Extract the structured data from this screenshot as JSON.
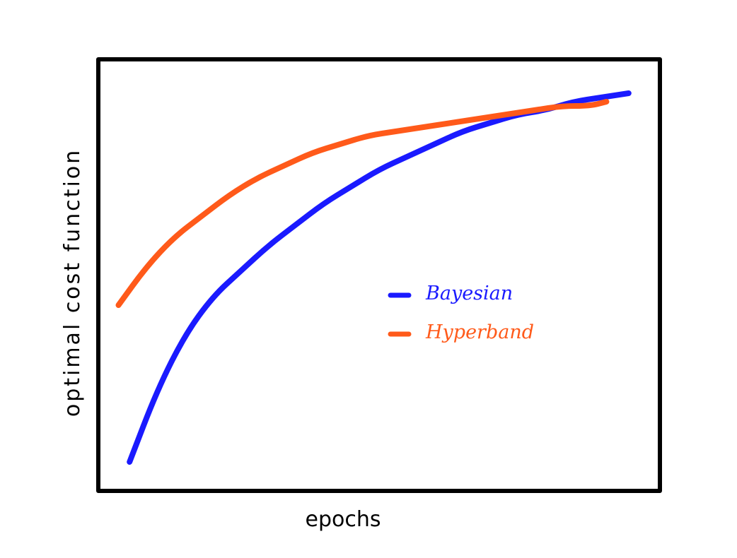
{
  "chart_data": {
    "type": "line",
    "title": "",
    "xlabel": "epochs",
    "ylabel": "optimal cost function",
    "xlim": [
      0,
      100
    ],
    "ylim": [
      0,
      100
    ],
    "grid": false,
    "legend_position": "center-right",
    "series": [
      {
        "name": "Bayesian",
        "color": "#1a1aff",
        "points": [
          [
            5,
            6
          ],
          [
            10,
            23
          ],
          [
            15,
            36
          ],
          [
            20,
            45
          ],
          [
            25,
            51
          ],
          [
            30,
            57
          ],
          [
            35,
            62
          ],
          [
            40,
            67
          ],
          [
            45,
            71
          ],
          [
            50,
            75
          ],
          [
            55,
            78
          ],
          [
            60,
            81
          ],
          [
            65,
            84
          ],
          [
            70,
            86
          ],
          [
            75,
            88
          ],
          [
            80,
            89
          ],
          [
            85,
            91
          ],
          [
            90,
            92
          ],
          [
            95,
            93
          ]
        ]
      },
      {
        "name": "Hyperband",
        "color": "#ff5a1a",
        "points": [
          [
            3,
            43
          ],
          [
            8,
            52
          ],
          [
            13,
            59
          ],
          [
            18,
            64
          ],
          [
            23,
            69
          ],
          [
            28,
            73
          ],
          [
            33,
            76
          ],
          [
            38,
            79
          ],
          [
            43,
            81
          ],
          [
            48,
            83
          ],
          [
            53,
            84
          ],
          [
            58,
            85
          ],
          [
            63,
            86
          ],
          [
            68,
            87
          ],
          [
            73,
            88
          ],
          [
            78,
            89
          ],
          [
            83,
            90
          ],
          [
            88,
            90
          ],
          [
            91,
            91
          ]
        ]
      }
    ]
  }
}
